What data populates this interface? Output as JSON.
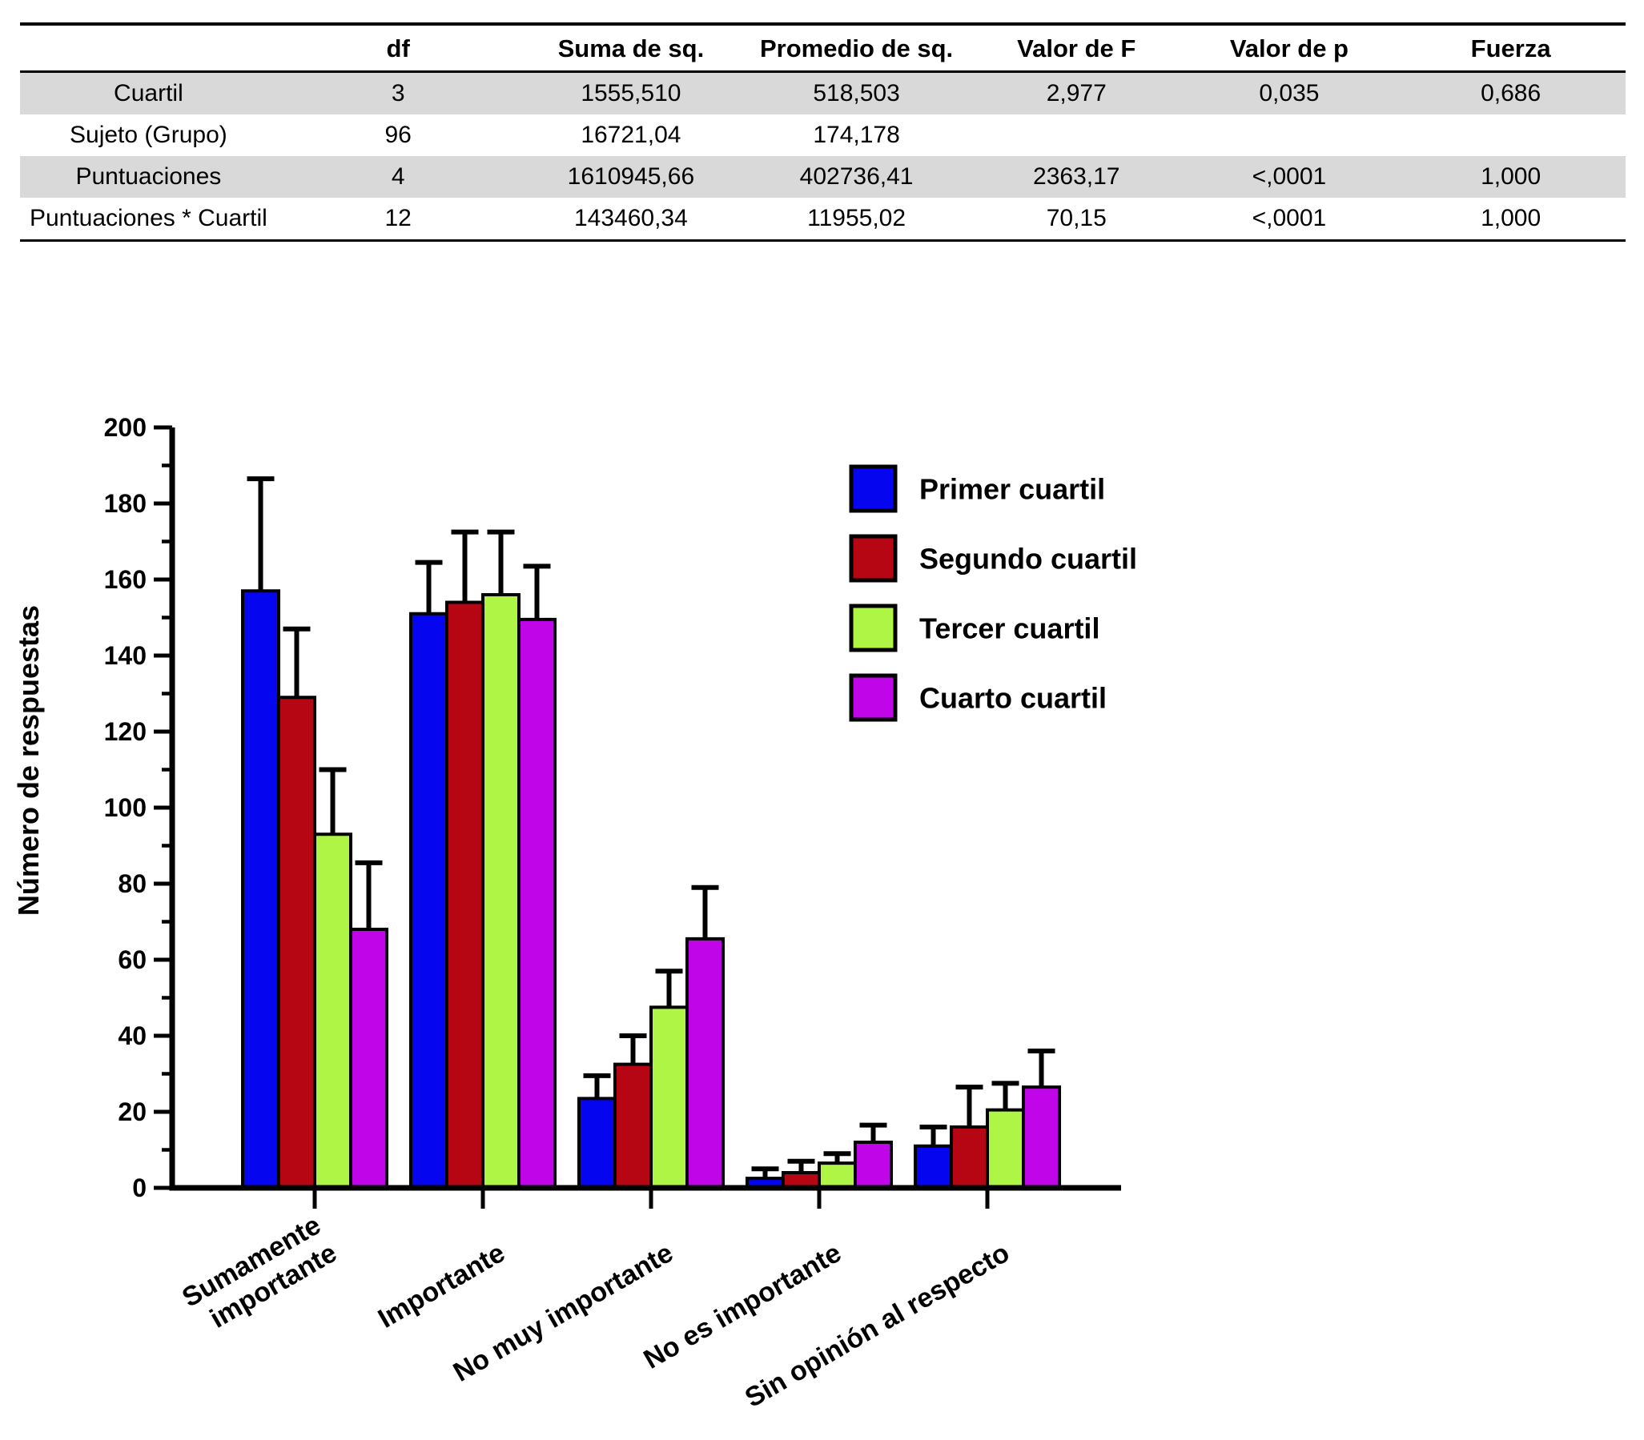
{
  "table": {
    "columns": [
      "",
      "df",
      "Suma de sq.",
      "Promedio de sq.",
      "Valor de F",
      "Valor de p",
      "Fuerza"
    ],
    "fields": [
      "label",
      "df",
      "suma",
      "promedio",
      "f",
      "p",
      "fuerza"
    ],
    "zebra_color": "#D9D9D9",
    "rows": [
      {
        "label": "Cuartil",
        "df": "3",
        "suma": "1555,510",
        "promedio": "518,503",
        "f": "2,977",
        "p": "0,035",
        "fuerza": "0,686",
        "shaded": true
      },
      {
        "label": "Sujeto (Grupo)",
        "df": "96",
        "suma": "16721,04",
        "promedio": "174,178",
        "f": "",
        "p": "",
        "fuerza": "",
        "shaded": false
      },
      {
        "label": "Puntuaciones",
        "df": "4",
        "suma": "1610945,66",
        "promedio": "402736,41",
        "f": "2363,17",
        "p": "<,0001",
        "fuerza": "1,000",
        "shaded": true
      },
      {
        "label": "Puntuaciones * Cuartil",
        "df": "12",
        "suma": "143460,34",
        "promedio": "11955,02",
        "f": "70,15",
        "p": "<,0001",
        "fuerza": "1,000",
        "shaded": false
      }
    ]
  },
  "chart_data": {
    "type": "bar",
    "title": "",
    "xlabel": "",
    "ylabel": "Número de respuestas",
    "ylim": [
      0,
      200
    ],
    "ytick_major": 20,
    "ytick_minor": 10,
    "grid": false,
    "legend_position": "upper right",
    "error_bars": "upper only",
    "categories": [
      "Sumamente\nimportante",
      "Importante",
      "No muy importante",
      "No es importante",
      "Sin opinión al respecto"
    ],
    "series": [
      {
        "name": "Primer cuartil",
        "color": "#0505F0",
        "values": [
          157,
          151,
          23.5,
          2.5,
          11
        ],
        "errors_up": [
          29.5,
          13.5,
          6,
          2.5,
          5
        ]
      },
      {
        "name": "Segundo cuartil",
        "color": "#B70613",
        "values": [
          129,
          154,
          32.5,
          4,
          16
        ],
        "errors_up": [
          18,
          18.5,
          7.5,
          3,
          10.5
        ]
      },
      {
        "name": "Tercer cuartil",
        "color": "#AEF546",
        "values": [
          93,
          156,
          47.5,
          6.5,
          20.5
        ],
        "errors_up": [
          17,
          16.5,
          9.5,
          2.5,
          7
        ]
      },
      {
        "name": "Cuarto cuartil",
        "color": "#C105E9",
        "values": [
          68,
          149.5,
          65.5,
          12,
          26.5
        ],
        "errors_up": [
          17.5,
          14,
          13.5,
          4.5,
          9.5
        ]
      }
    ]
  }
}
